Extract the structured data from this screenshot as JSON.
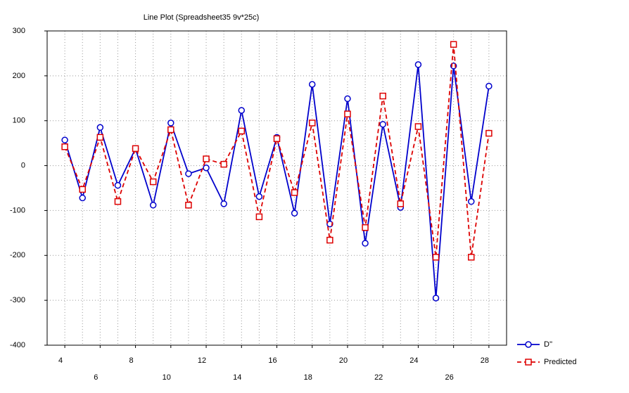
{
  "chart_data": {
    "type": "line",
    "title": "Line Plot (Spreadsheet35 9v*25c)",
    "x": [
      4,
      5,
      6,
      7,
      8,
      9,
      10,
      11,
      12,
      13,
      14,
      15,
      16,
      17,
      18,
      19,
      20,
      21,
      22,
      23,
      24,
      25,
      26,
      27,
      28
    ],
    "series": [
      {
        "name": "D''",
        "color": "#0000cc",
        "marker": "circle",
        "dash": false,
        "values": [
          57,
          -72,
          85,
          -44,
          38,
          -88,
          95,
          -18,
          -5,
          -85,
          123,
          -69,
          63,
          -106,
          181,
          -130,
          149,
          -173,
          92,
          -93,
          225,
          -295,
          222,
          -80,
          177
        ]
      },
      {
        "name": "Predicted",
        "color": "#dd0000",
        "marker": "square",
        "dash": true,
        "values": [
          42,
          -53,
          63,
          -80,
          38,
          -36,
          80,
          -88,
          15,
          3,
          77,
          -114,
          60,
          -60,
          95,
          -166,
          115,
          -138,
          155,
          -85,
          87,
          -204,
          270,
          -204,
          72
        ]
      }
    ],
    "xlim": [
      3,
      29
    ],
    "xticks": [
      4,
      6,
      8,
      10,
      12,
      14,
      16,
      18,
      20,
      22,
      24,
      26,
      28
    ],
    "ylim": [
      -400,
      300
    ],
    "yticks": [
      -400,
      -300,
      -200,
      -100,
      0,
      100,
      200,
      300
    ],
    "grid": true,
    "legend": "bottom-right"
  }
}
